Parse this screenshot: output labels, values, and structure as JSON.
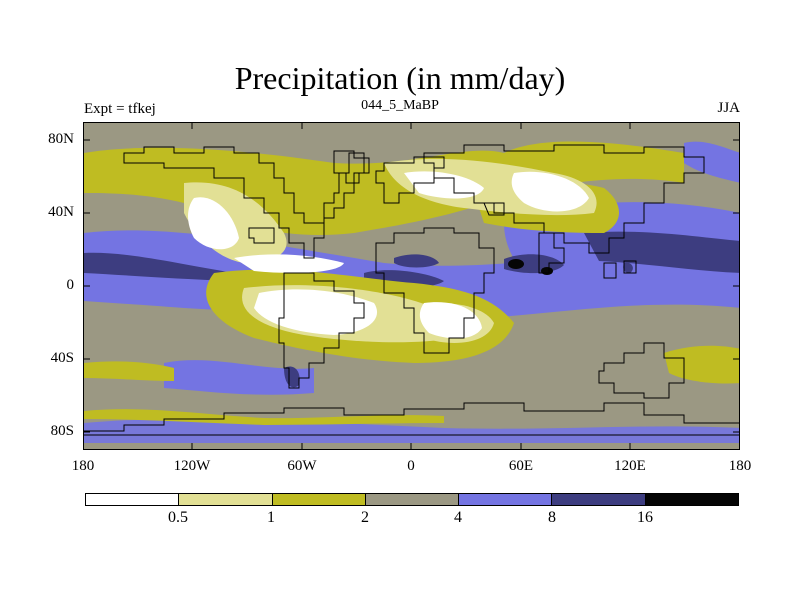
{
  "title": "Precipitation (in mm/day)",
  "left_label": "Expt = tfkej",
  "center_label": "044_5_MaBP",
  "right_label": "JJA",
  "lat_labels": [
    "80N",
    "40N",
    "0",
    "40S",
    "80S"
  ],
  "lon_labels": [
    "180",
    "120W",
    "60W",
    "0",
    "60E",
    "120E",
    "180"
  ],
  "colorbar": {
    "colors": [
      "#ffffff",
      "#e2e095",
      "#bfbc22",
      "#9b9883",
      "#7474e2",
      "#3d3d80",
      "#050505"
    ],
    "labels": [
      "0.5",
      "1",
      "2",
      "4",
      "8",
      "16"
    ]
  }
}
